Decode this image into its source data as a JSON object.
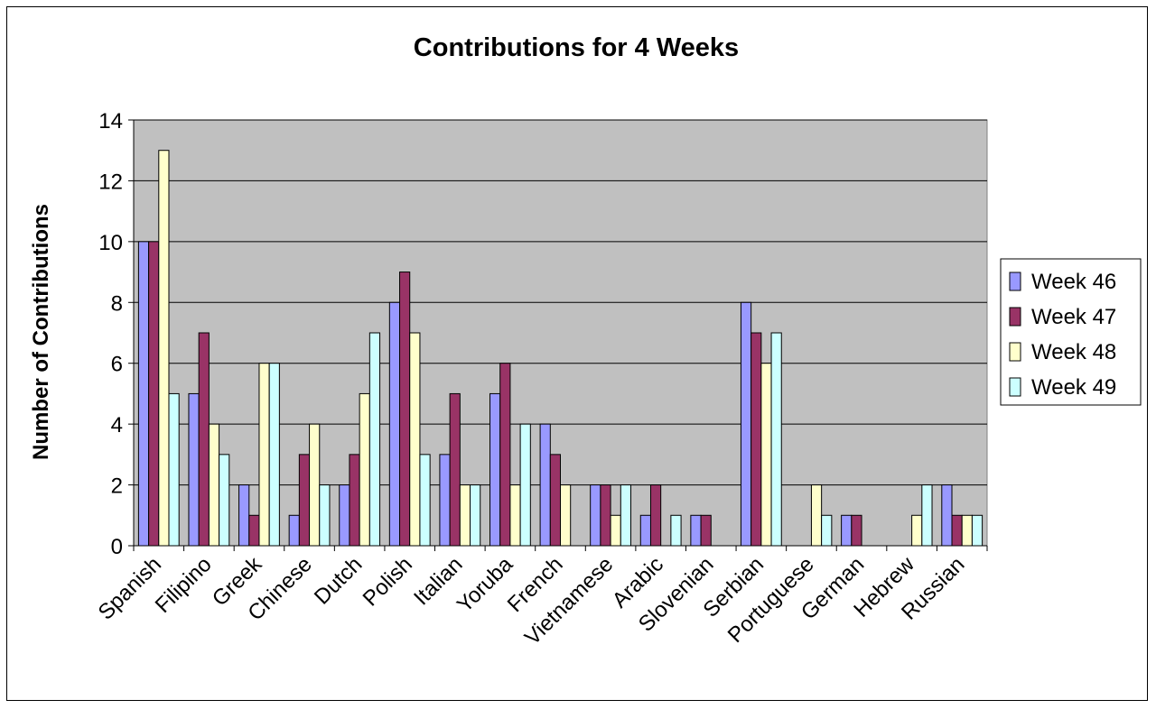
{
  "chart_data": {
    "type": "bar",
    "title": "Contributions for 4 Weeks",
    "xlabel": "",
    "ylabel": "Number of Contributions",
    "ylim": [
      0,
      14
    ],
    "yticks": [
      0,
      2,
      4,
      6,
      8,
      10,
      12,
      14
    ],
    "grid": true,
    "legend_position": "right",
    "plot_background": "#c0c0c0",
    "categories": [
      "Spanish",
      "Filipino",
      "Greek",
      "Chinese",
      "Dutch",
      "Polish",
      "Italian",
      "Yoruba",
      "French",
      "Vietnamese",
      "Arabic",
      "Slovenian",
      "Serbian",
      "Portuguese",
      "German",
      "Hebrew",
      "Russian"
    ],
    "series": [
      {
        "name": "Week 46",
        "color": "#9999ff",
        "values": [
          10,
          5,
          2,
          1,
          2,
          8,
          3,
          5,
          4,
          2,
          1,
          1,
          8,
          0,
          1,
          0,
          2
        ]
      },
      {
        "name": "Week 47",
        "color": "#993366",
        "values": [
          10,
          7,
          1,
          3,
          3,
          9,
          5,
          6,
          3,
          2,
          2,
          1,
          7,
          0,
          1,
          0,
          1
        ]
      },
      {
        "name": "Week 48",
        "color": "#ffffcc",
        "values": [
          13,
          4,
          6,
          4,
          5,
          7,
          2,
          2,
          2,
          1,
          0,
          0,
          6,
          2,
          0,
          1,
          1
        ]
      },
      {
        "name": "Week 49",
        "color": "#ccffff",
        "values": [
          5,
          3,
          6,
          2,
          7,
          3,
          2,
          4,
          0,
          2,
          1,
          0,
          7,
          1,
          0,
          2,
          1
        ]
      }
    ]
  }
}
